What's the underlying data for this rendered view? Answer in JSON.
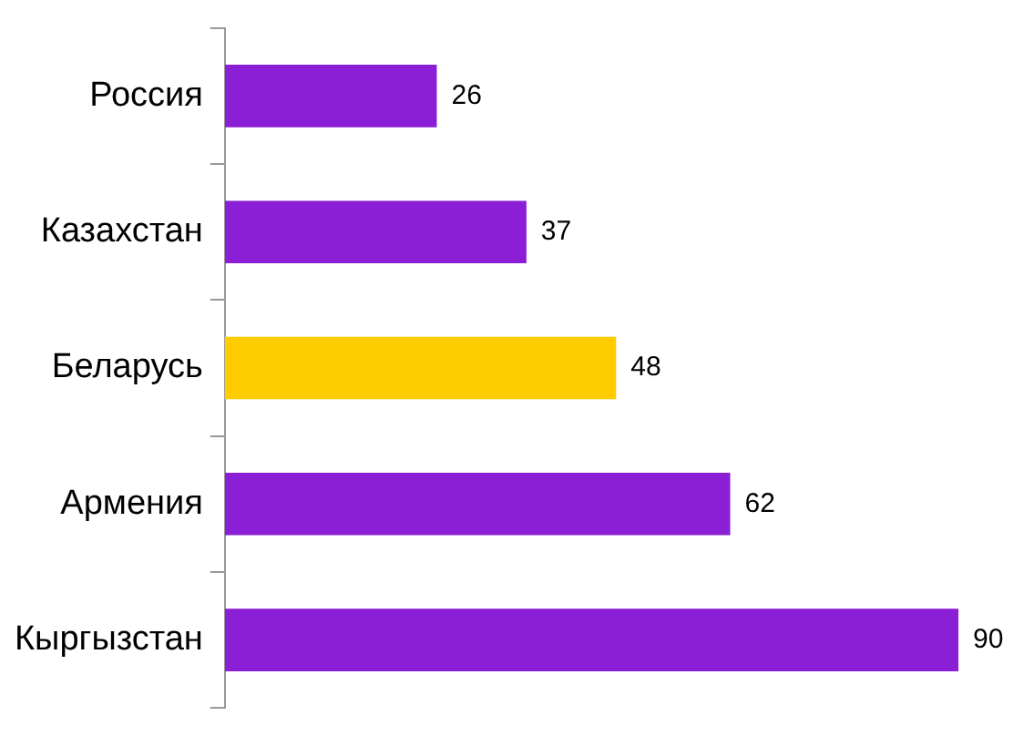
{
  "chart_data": {
    "type": "bar",
    "orientation": "horizontal",
    "categories": [
      "Россия",
      "Казахстан",
      "Беларусь",
      "Армения",
      "Кыргызстан"
    ],
    "values": [
      26,
      37,
      48,
      62,
      90
    ],
    "colors": [
      "#8a1fd6",
      "#8a1fd6",
      "#ffcc00",
      "#8a1fd6",
      "#8a1fd6"
    ],
    "data_labels": true,
    "tick_labels": "y",
    "legend": false,
    "grid": false
  }
}
